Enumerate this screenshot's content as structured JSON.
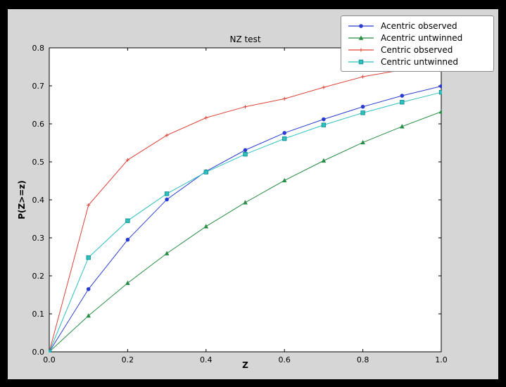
{
  "style": {
    "frame_bg": "#000000",
    "figure_bg": "#d6d6d6",
    "plot_bg": "#ffffff",
    "axis_color": "#000000",
    "legend_bg": "#ffffff",
    "legend_border": "#8a8a8a"
  },
  "chart_data": {
    "type": "line",
    "title": "NZ test",
    "xlabel": "Z",
    "ylabel": "P(Z>=z)",
    "xlim": [
      0.0,
      1.0
    ],
    "ylim": [
      0.0,
      0.8
    ],
    "xticks": [
      0.0,
      0.2,
      0.4,
      0.6,
      0.8,
      1.0
    ],
    "yticks": [
      0.0,
      0.1,
      0.2,
      0.3,
      0.4,
      0.5,
      0.6,
      0.7,
      0.8
    ],
    "grid": false,
    "legend_position": "upper right",
    "x": [
      0.0,
      0.1,
      0.2,
      0.3,
      0.4,
      0.5,
      0.6,
      0.7,
      0.8,
      0.9,
      1.0
    ],
    "series": [
      {
        "name": "Acentric observed",
        "color": "#2a3cd0",
        "marker": "circle",
        "values": [
          0.0,
          0.165,
          0.295,
          0.401,
          0.475,
          0.531,
          0.576,
          0.612,
          0.645,
          0.674,
          0.699
        ]
      },
      {
        "name": "Acentric untwinned",
        "color": "#278c44",
        "marker": "triangle",
        "values": [
          0.0,
          0.095,
          0.181,
          0.259,
          0.33,
          0.393,
          0.451,
          0.503,
          0.551,
          0.593,
          0.632
        ]
      },
      {
        "name": "Centric observed",
        "color": "#dd4237",
        "marker": "plus",
        "values": [
          0.0,
          0.386,
          0.505,
          0.57,
          0.616,
          0.645,
          0.666,
          0.696,
          0.724,
          0.742,
          0.757
        ]
      },
      {
        "name": "Centric untwinned",
        "color": "#2fbfbf",
        "marker": "square",
        "values": [
          0.0,
          0.248,
          0.345,
          0.416,
          0.473,
          0.52,
          0.561,
          0.597,
          0.629,
          0.657,
          0.683
        ]
      }
    ]
  }
}
